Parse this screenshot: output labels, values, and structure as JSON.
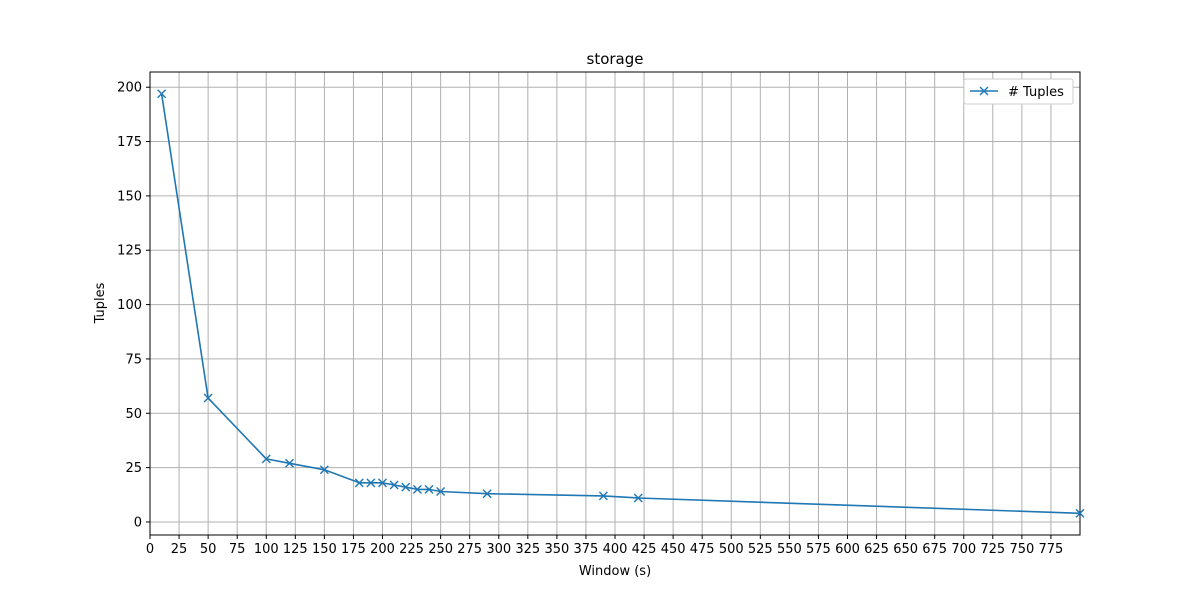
{
  "chart_data": {
    "type": "line",
    "title": "storage",
    "xlabel": "Window (s)",
    "ylabel": "Tuples",
    "xlim": [
      0,
      800
    ],
    "ylim": [
      -6,
      207
    ],
    "x_ticks": [
      0,
      25,
      50,
      75,
      100,
      125,
      150,
      175,
      200,
      225,
      250,
      275,
      300,
      325,
      350,
      375,
      400,
      425,
      450,
      475,
      500,
      525,
      550,
      575,
      600,
      625,
      650,
      675,
      700,
      725,
      750,
      775
    ],
    "y_ticks": [
      0,
      25,
      50,
      75,
      100,
      125,
      150,
      175,
      200
    ],
    "grid": true,
    "legend_position": "top-right",
    "series": [
      {
        "name": "# Tuples",
        "color": "#1f77b4",
        "marker": "x",
        "x": [
          10,
          50,
          100,
          120,
          150,
          180,
          190,
          200,
          210,
          220,
          230,
          240,
          250,
          290,
          390,
          420,
          800
        ],
        "y": [
          197,
          57,
          29,
          27,
          24,
          18,
          18,
          18,
          17,
          16,
          15,
          15,
          14,
          13,
          12,
          11,
          4
        ]
      }
    ]
  }
}
